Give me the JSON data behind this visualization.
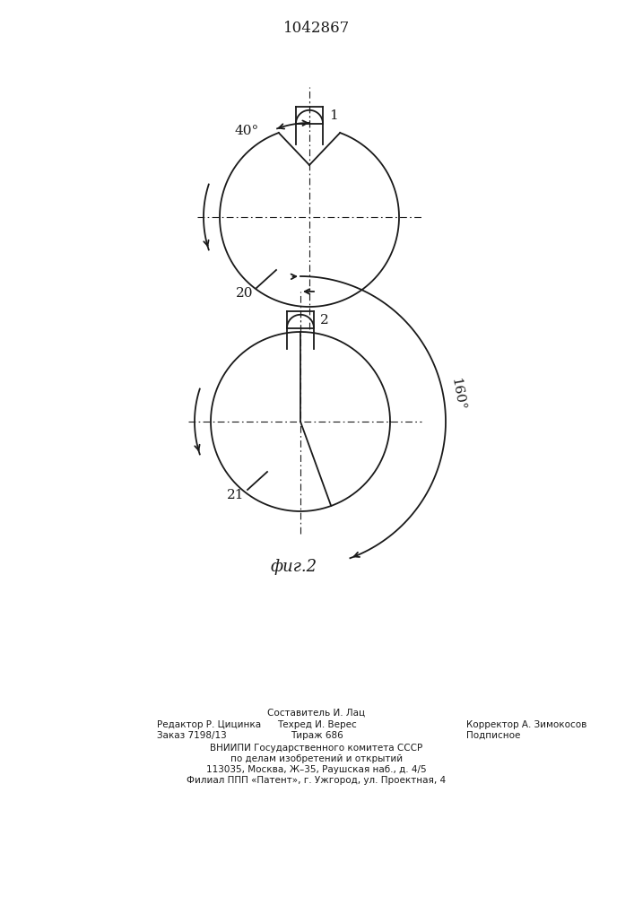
{
  "title": "1042867",
  "fig2_label": "фиг.2",
  "bg_color": "#ffffff",
  "line_color": "#1a1a1a",
  "fig_width": 7.07,
  "fig_height": 10.0,
  "dpi": 100,
  "footer_lines": [
    "Составитель И. Лац",
    "Редактор Р. Цицинка",
    "Техред И. Верес",
    "Корректор А. Зимокосов",
    "Заказ 7198/13",
    "Тираж 686",
    "Подписное",
    "ВНИИПИ Государственного комитета СССР",
    "по делам изобретений и открытий",
    "113035, Москва, Ж–35, Раушская наб., д. 4/5",
    "Филиал ППП «Патент», г. Ужгород, ул. Проектная, 4"
  ]
}
